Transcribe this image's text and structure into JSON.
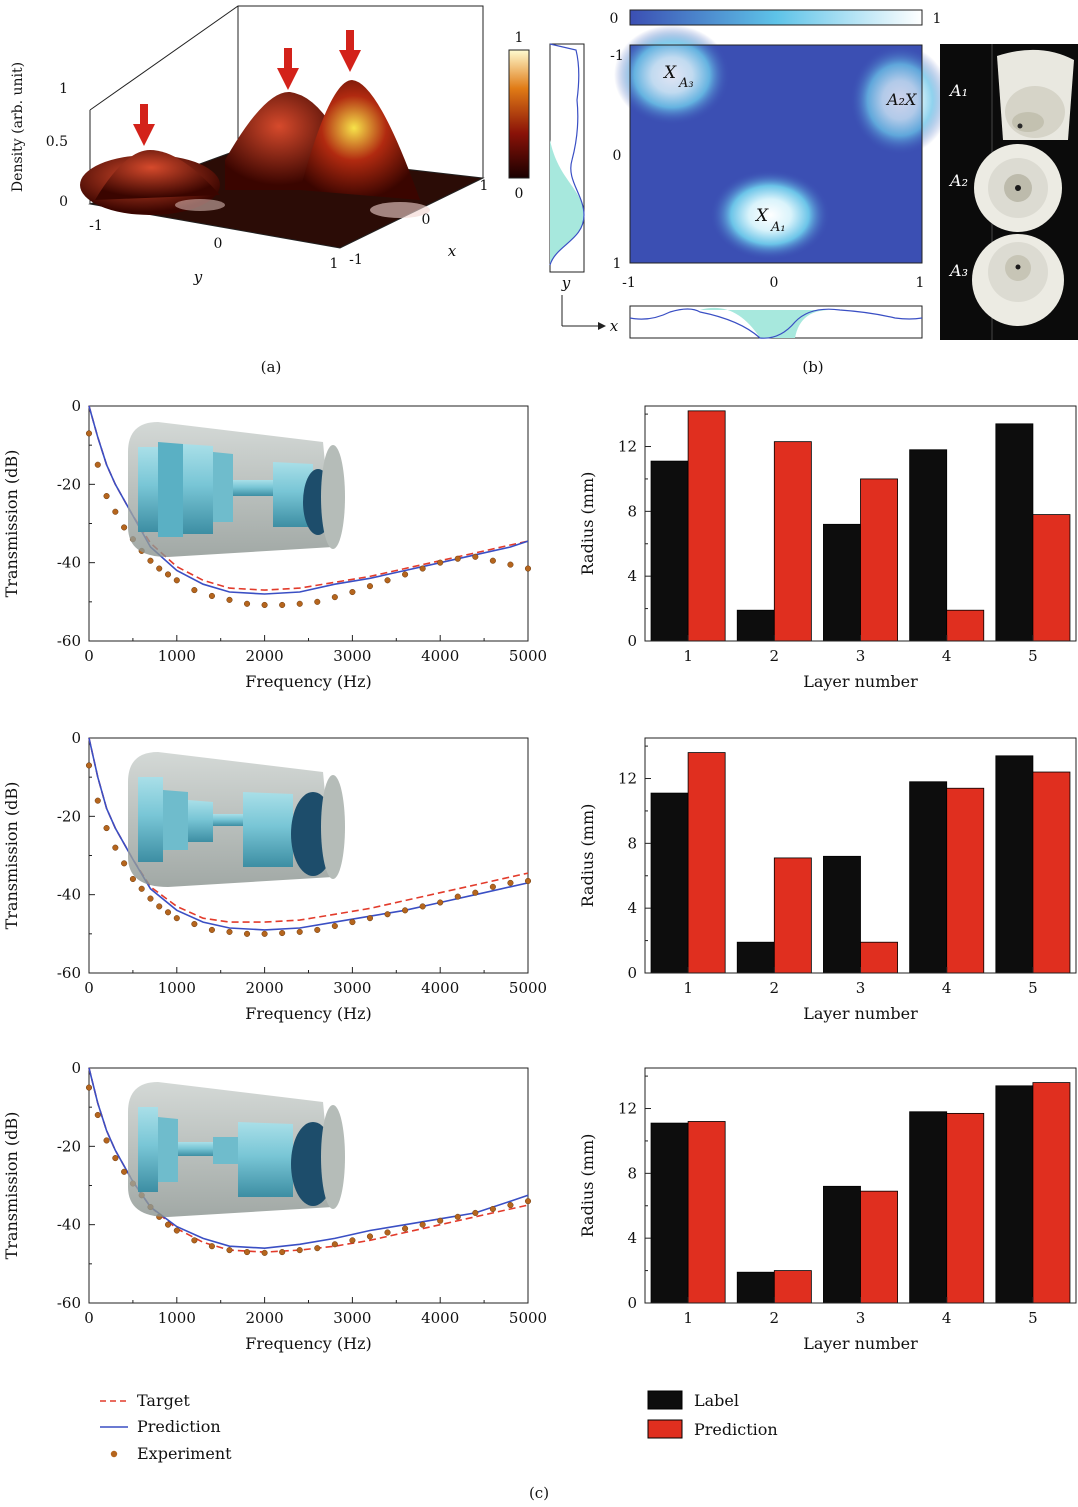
{
  "colors": {
    "target": "#e23b2b",
    "prediction_line": "#3a4fc4",
    "experiment": "#b5651d",
    "label_bar": "#0d0d0d",
    "prediction_bar": "#e02f1f",
    "map_low": "#3b4fb3",
    "map_high": "#ffffff",
    "density_dark": "#200000",
    "density_light": "#fff7c0"
  },
  "panel_labels": {
    "a": "(a)",
    "b": "(b)",
    "c": "(c)"
  },
  "panel_a": {
    "zlabel": "Density (arb. unit)",
    "z_ticks": [
      "0",
      "0.5",
      "1"
    ],
    "y_label": "y",
    "y_ticks": [
      "-1",
      "0",
      "1"
    ],
    "x_label": "x",
    "x_ticks": [
      "-1",
      "0",
      "1"
    ],
    "colorbar_ticks": [
      "1",
      "0"
    ],
    "peaks": [
      {
        "x": 0.5,
        "y": -0.6,
        "density": 0.35
      },
      {
        "x": -0.8,
        "y": 0.5,
        "density": 0.55
      },
      {
        "x": 0.0,
        "y": 0.9,
        "density": 0.9
      }
    ]
  },
  "panel_b": {
    "colorbar_ticks": [
      "0",
      "1"
    ],
    "x_ticks": [
      "-1",
      "0",
      "1"
    ],
    "y_ticks": [
      "-1",
      "0",
      "1"
    ],
    "axis_x": "x",
    "axis_y": "y",
    "markers": [
      {
        "label": "X",
        "sub": "A₃",
        "x": -0.7,
        "y": -0.82
      },
      {
        "label": "A₂X",
        "sub": "",
        "x": 0.84,
        "y": -0.6
      },
      {
        "label": "X",
        "sub": "A₁",
        "x": 0.0,
        "y": 0.52
      }
    ],
    "photo_labels": [
      "A₁",
      "A₂",
      "A₃"
    ]
  },
  "chart_data": [
    {
      "type": "line",
      "xlabel": "Frequency (Hz)",
      "ylabel": "Transmission (dB)",
      "xlim": [
        0,
        5000
      ],
      "ylim": [
        -60,
        0
      ],
      "x_ticks": [
        "0",
        "1000",
        "2000",
        "3000",
        "4000",
        "5000"
      ],
      "y_ticks": [
        "0",
        "-20",
        "-40",
        "-60"
      ],
      "series": [
        {
          "name": "Target",
          "x": [
            0,
            100,
            200,
            300,
            500,
            700,
            1000,
            1300,
            1600,
            2000,
            2400,
            2800,
            3200,
            3600,
            4000,
            4400,
            4800,
            5000
          ],
          "y": [
            0,
            -8,
            -15,
            -20,
            -28,
            -35,
            -41,
            -44.5,
            -46.5,
            -47,
            -46.5,
            -45,
            -43.5,
            -41.5,
            -39.5,
            -37.5,
            -35.5,
            -34.5
          ]
        },
        {
          "name": "Prediction",
          "x": [
            0,
            100,
            200,
            300,
            500,
            700,
            1000,
            1300,
            1600,
            2000,
            2400,
            2800,
            3200,
            3600,
            4000,
            4400,
            4800,
            5000
          ],
          "y": [
            0,
            -8,
            -15,
            -20,
            -28,
            -36,
            -42,
            -45.5,
            -47.5,
            -48,
            -47.5,
            -45.5,
            -44,
            -42,
            -40,
            -38,
            -36,
            -34.5
          ]
        },
        {
          "name": "Experiment",
          "x": [
            0,
            100,
            200,
            300,
            400,
            500,
            600,
            700,
            800,
            900,
            1000,
            1200,
            1400,
            1600,
            1800,
            2000,
            2200,
            2400,
            2600,
            2800,
            3000,
            3200,
            3400,
            3600,
            3800,
            4000,
            4200,
            4400,
            4600,
            4800,
            5000
          ],
          "y": [
            -7,
            -15,
            -23,
            -27,
            -31,
            -34,
            -37,
            -39.5,
            -41.5,
            -43,
            -44.5,
            -47,
            -48.5,
            -49.5,
            -50.5,
            -50.8,
            -50.8,
            -50.5,
            -50,
            -48.8,
            -47.5,
            -46,
            -44.5,
            -43,
            -41.5,
            -40,
            -39,
            -38.5,
            -39.5,
            -40.5,
            -41.5
          ]
        }
      ]
    },
    {
      "type": "bar",
      "xlabel": "Layer number",
      "ylabel": "Radius (mm)",
      "categories": [
        "1",
        "2",
        "3",
        "4",
        "5"
      ],
      "ylim": [
        0,
        14.5
      ],
      "y_ticks": [
        "0",
        "4",
        "8",
        "12"
      ],
      "series": [
        {
          "name": "Label",
          "values": [
            11.1,
            1.9,
            7.2,
            11.8,
            13.4
          ]
        },
        {
          "name": "Prediction",
          "values": [
            14.2,
            12.3,
            10.0,
            1.9,
            7.8
          ]
        }
      ]
    },
    {
      "type": "line",
      "xlabel": "Frequency (Hz)",
      "ylabel": "Transmission (dB)",
      "xlim": [
        0,
        5000
      ],
      "ylim": [
        -60,
        0
      ],
      "x_ticks": [
        "0",
        "1000",
        "2000",
        "3000",
        "4000",
        "5000"
      ],
      "y_ticks": [
        "0",
        "-20",
        "-40",
        "-60"
      ],
      "series": [
        {
          "name": "Target",
          "x": [
            0,
            100,
            200,
            300,
            500,
            700,
            1000,
            1300,
            1600,
            2000,
            2400,
            2800,
            3200,
            3600,
            4000,
            4400,
            4800,
            5000
          ],
          "y": [
            0,
            -10,
            -18,
            -23,
            -31,
            -38,
            -43,
            -46,
            -47,
            -47,
            -46.5,
            -45,
            -43.5,
            -41.5,
            -39.5,
            -37.5,
            -35.5,
            -34.5
          ]
        },
        {
          "name": "Prediction",
          "x": [
            0,
            100,
            200,
            300,
            500,
            700,
            1000,
            1300,
            1600,
            2000,
            2400,
            2800,
            3200,
            3600,
            4000,
            4400,
            4800,
            5000
          ],
          "y": [
            0,
            -10,
            -18,
            -23,
            -31,
            -38.5,
            -44,
            -47,
            -48.5,
            -49,
            -48.5,
            -47,
            -45.5,
            -44,
            -42,
            -40,
            -38,
            -37
          ]
        },
        {
          "name": "Experiment",
          "x": [
            0,
            100,
            200,
            300,
            400,
            500,
            600,
            700,
            800,
            900,
            1000,
            1200,
            1400,
            1600,
            1800,
            2000,
            2200,
            2400,
            2600,
            2800,
            3000,
            3200,
            3400,
            3600,
            3800,
            4000,
            4200,
            4400,
            4600,
            4800,
            5000
          ],
          "y": [
            -7,
            -16,
            -23,
            -28,
            -32,
            -36,
            -38.5,
            -41,
            -43,
            -44.5,
            -46,
            -47.5,
            -49,
            -49.5,
            -50,
            -50,
            -49.8,
            -49.5,
            -49,
            -48,
            -47,
            -46,
            -45,
            -44,
            -43,
            -42,
            -40.5,
            -39.5,
            -38,
            -37,
            -36.5
          ]
        }
      ]
    },
    {
      "type": "bar",
      "xlabel": "Layer number",
      "ylabel": "Radius (mm)",
      "categories": [
        "1",
        "2",
        "3",
        "4",
        "5"
      ],
      "ylim": [
        0,
        14.5
      ],
      "y_ticks": [
        "0",
        "4",
        "8",
        "12"
      ],
      "series": [
        {
          "name": "Label",
          "values": [
            11.1,
            1.9,
            7.2,
            11.8,
            13.4
          ]
        },
        {
          "name": "Prediction",
          "values": [
            13.6,
            7.1,
            1.9,
            11.4,
            12.4
          ]
        }
      ]
    },
    {
      "type": "line",
      "xlabel": "Frequency (Hz)",
      "ylabel": "Transmission (dB)",
      "xlim": [
        0,
        5000
      ],
      "ylim": [
        -60,
        0
      ],
      "x_ticks": [
        "0",
        "1000",
        "2000",
        "3000",
        "4000",
        "5000"
      ],
      "y_ticks": [
        "0",
        "-20",
        "-40",
        "-60"
      ],
      "series": [
        {
          "name": "Target",
          "x": [
            0,
            100,
            200,
            300,
            500,
            700,
            1000,
            1300,
            1600,
            2000,
            2400,
            2800,
            3200,
            3600,
            4000,
            4400,
            4800,
            5000
          ],
          "y": [
            0,
            -9,
            -16,
            -21,
            -29,
            -35.5,
            -41,
            -44.5,
            -46.5,
            -47,
            -46.5,
            -45.5,
            -44,
            -42,
            -40,
            -38,
            -36,
            -35
          ]
        },
        {
          "name": "Prediction",
          "x": [
            0,
            100,
            200,
            300,
            500,
            700,
            1000,
            1300,
            1600,
            2000,
            2400,
            2800,
            3200,
            3600,
            4000,
            4400,
            4800,
            5000
          ],
          "y": [
            0,
            -9,
            -16,
            -21,
            -29,
            -35.5,
            -40.5,
            -43.5,
            -45.5,
            -46,
            -45,
            -43.5,
            -41.5,
            -40,
            -38.5,
            -37,
            -34,
            -32.5
          ]
        },
        {
          "name": "Experiment",
          "x": [
            0,
            100,
            200,
            300,
            400,
            500,
            600,
            700,
            800,
            900,
            1000,
            1200,
            1400,
            1600,
            1800,
            2000,
            2200,
            2400,
            2600,
            2800,
            3000,
            3200,
            3400,
            3600,
            3800,
            4000,
            4200,
            4400,
            4600,
            4800,
            5000
          ],
          "y": [
            -5,
            -12,
            -18.5,
            -23,
            -26.5,
            -29.5,
            -32.5,
            -35.5,
            -38,
            -40,
            -41.5,
            -44,
            -45.5,
            -46.5,
            -47,
            -47.2,
            -47,
            -46.5,
            -46,
            -45,
            -44,
            -43,
            -42,
            -41,
            -40,
            -39,
            -38,
            -37,
            -36,
            -35,
            -34
          ]
        }
      ]
    },
    {
      "type": "bar",
      "xlabel": "Layer number",
      "ylabel": "Radius (mm)",
      "categories": [
        "1",
        "2",
        "3",
        "4",
        "5"
      ],
      "ylim": [
        0,
        14.5
      ],
      "y_ticks": [
        "0",
        "4",
        "8",
        "12"
      ],
      "series": [
        {
          "name": "Label",
          "values": [
            11.1,
            1.9,
            7.2,
            11.8,
            13.4
          ]
        },
        {
          "name": "Prediction",
          "values": [
            11.2,
            2.0,
            6.9,
            11.7,
            13.6
          ]
        }
      ]
    }
  ],
  "legend_line": [
    "Target",
    "Prediction",
    "Experiment"
  ],
  "legend_bar": [
    "Label",
    "Prediction"
  ]
}
